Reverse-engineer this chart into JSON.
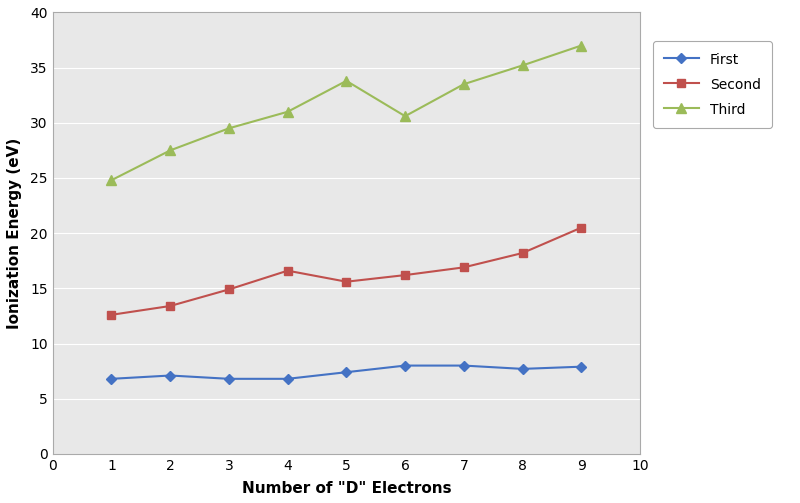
{
  "x": [
    1,
    2,
    3,
    4,
    5,
    6,
    7,
    8,
    9
  ],
  "first": [
    6.8,
    7.1,
    6.8,
    6.8,
    7.4,
    8.0,
    8.0,
    7.7,
    7.9
  ],
  "second": [
    12.6,
    13.4,
    14.9,
    16.6,
    15.6,
    16.2,
    16.9,
    18.2,
    20.5
  ],
  "third": [
    24.8,
    27.5,
    29.5,
    31.0,
    33.8,
    30.6,
    33.5,
    35.2,
    37.0
  ],
  "first_color": "#4472C4",
  "second_color": "#C0504D",
  "third_color": "#9BBB59",
  "xlabel": "Number of \"D\" Electrons",
  "ylabel": "Ionization Energy (eV)",
  "xlim": [
    0,
    10
  ],
  "ylim": [
    0,
    40
  ],
  "xticks": [
    0,
    1,
    2,
    3,
    4,
    5,
    6,
    7,
    8,
    9,
    10
  ],
  "yticks": [
    0,
    5,
    10,
    15,
    20,
    25,
    30,
    35,
    40
  ],
  "legend_labels": [
    "First",
    "Second",
    "Third"
  ],
  "plot_bg_color": "#E8E8E8",
  "fig_bg_color": "#FFFFFF",
  "grid_color": "#FFFFFF"
}
